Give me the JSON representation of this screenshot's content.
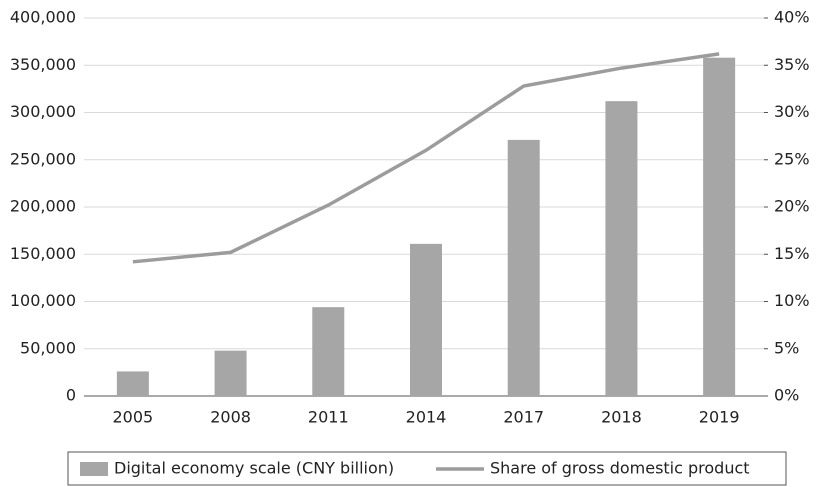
{
  "chart_data": {
    "type": "bar",
    "categories": [
      "2005",
      "2008",
      "2011",
      "2014",
      "2017",
      "2018",
      "2019"
    ],
    "series": [
      {
        "name": "Digital economy scale (CNY billion)",
        "type": "bar",
        "color": "#a6a6a6",
        "values": [
          26000,
          48000,
          94000,
          161000,
          271000,
          312000,
          358000
        ]
      },
      {
        "name": "Share of gross domestic product",
        "type": "line",
        "axis": "y2",
        "color": "#9c9c9c",
        "values": [
          14.2,
          15.2,
          20.2,
          26.0,
          32.8,
          34.7,
          36.2
        ]
      }
    ],
    "ylim": [
      0,
      400000
    ],
    "yticks": [
      0,
      {
        "value": 50000,
        "label": "50,000"
      },
      {
        "value": 100000,
        "label": "100,000"
      },
      {
        "value": 150000,
        "label": "150,000"
      },
      {
        "value": 200000,
        "label": "200,000"
      },
      {
        "value": 250000,
        "label": "250,000"
      },
      {
        "value": 300000,
        "label": "300,000"
      },
      {
        "value": 350000,
        "label": "350,000"
      },
      {
        "value": 400000,
        "label": "400,000"
      }
    ],
    "y2lim": [
      0,
      40
    ],
    "y2ticks": [
      {
        "value": 0,
        "label": "0%"
      },
      {
        "value": 5,
        "label": "5%"
      },
      {
        "value": 10,
        "label": "10%"
      },
      {
        "value": 15,
        "label": "15%"
      },
      {
        "value": 20,
        "label": "20%"
      },
      {
        "value": 25,
        "label": "25%"
      },
      {
        "value": 30,
        "label": "30%"
      },
      {
        "value": 35,
        "label": "35%"
      },
      {
        "value": 40,
        "label": "40%"
      }
    ],
    "grid": true,
    "legend": "bottom"
  }
}
